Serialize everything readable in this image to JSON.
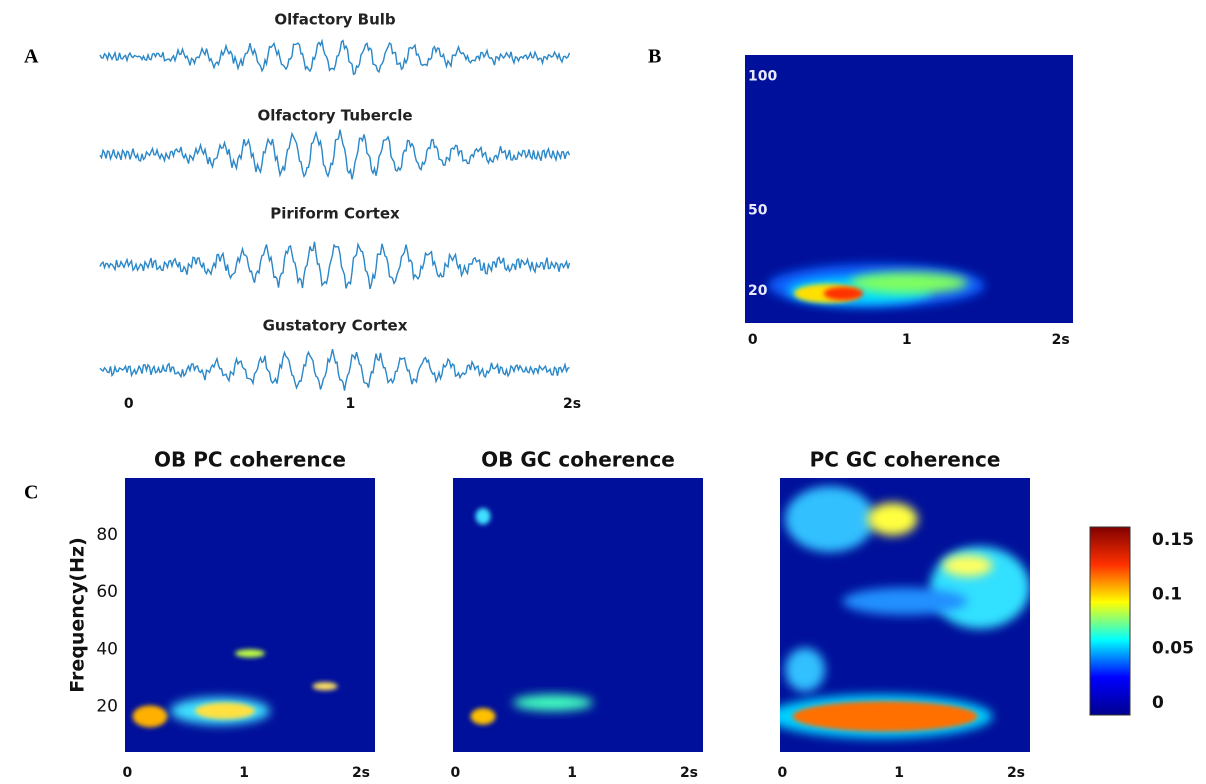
{
  "panels": {
    "a": {
      "label": "A",
      "traces": [
        "Olfactory Bulb",
        "Olfactory Tubercle",
        "Piriform Cortex",
        "Gustatory Cortex"
      ],
      "xlim": [
        -0.13,
        2
      ],
      "xticks": [
        0,
        1,
        {
          "value": 2,
          "label": "2s"
        }
      ]
    },
    "b": {
      "label": "B",
      "xlim": [
        -0.05,
        2.08
      ],
      "xticks": [
        0,
        1,
        {
          "value": 2,
          "label": "2s"
        }
      ],
      "ylim": [
        8,
        108
      ],
      "yticks": [
        20,
        50,
        100
      ]
    },
    "c": {
      "label": "C",
      "ylabel": "Frequency(Hz)",
      "xlim": [
        -0.02,
        2.12
      ],
      "xticks": [
        0,
        1,
        {
          "value": 2,
          "label": "2s"
        }
      ],
      "ylim": [
        4,
        100
      ],
      "yticks": [
        20,
        40,
        60,
        80
      ],
      "plots": [
        {
          "title": "OB PC coherence"
        },
        {
          "title": "OB GC coherence"
        },
        {
          "title": "PC GC coherence"
        }
      ],
      "colorbar": {
        "lim": [
          -0.011,
          0.162
        ],
        "ticks": [
          0,
          0.05,
          0.1,
          0.15
        ]
      }
    }
  }
}
